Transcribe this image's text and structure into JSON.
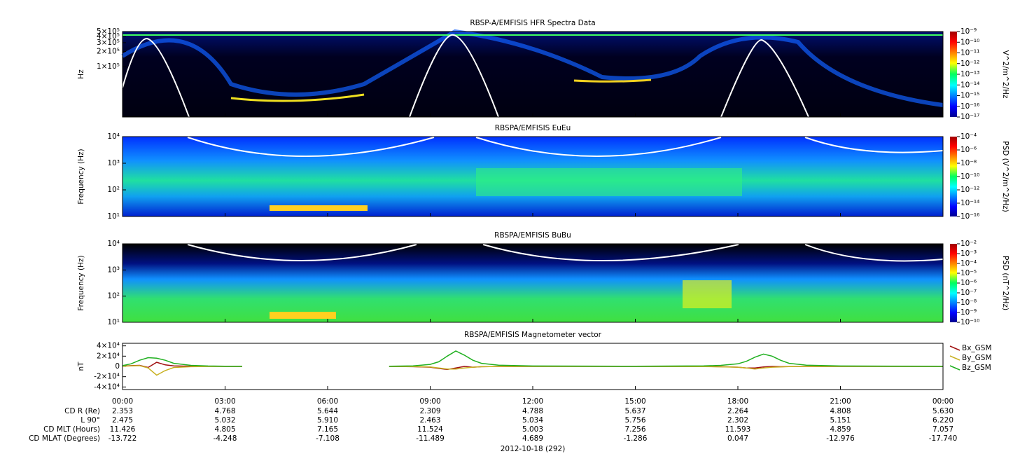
{
  "chart_data": [
    {
      "type": "spectrogram",
      "title": "RBSP-A/EMFISIS  HFR Spectra Data",
      "ylabel": "Hz",
      "log": true,
      "ylim": [
        10000,
        500000
      ],
      "yticks": [
        {
          "value": 500000,
          "label": "5×10⁵"
        },
        {
          "value": 400000,
          "label": "4×10⁵"
        },
        {
          "value": 300000,
          "label": "3×10⁵"
        },
        {
          "value": 200000,
          "label": "2×10⁵"
        },
        {
          "value": 100000,
          "label": "1×10⁵"
        }
      ],
      "colorbar": {
        "label": "V^2/m^2/Hz",
        "clim": [
          1e-17,
          1e-09
        ],
        "ticks": [
          {
            "value": 1e-09,
            "label": "10⁻⁹"
          },
          {
            "value": 1e-10,
            "label": "10⁻¹⁰"
          },
          {
            "value": 1e-11,
            "label": "10⁻¹¹"
          },
          {
            "value": 1e-12,
            "label": "10⁻¹²"
          },
          {
            "value": 1e-13,
            "label": "10⁻¹³"
          },
          {
            "value": 1e-14,
            "label": "10⁻¹⁴"
          },
          {
            "value": 1e-15,
            "label": "10⁻¹⁵"
          },
          {
            "value": 1e-16,
            "label": "10⁻¹⁶"
          },
          {
            "value": 1e-17,
            "label": "10⁻¹⁷"
          }
        ]
      }
    },
    {
      "type": "spectrogram",
      "title": "RBSPA/EMFISIS  EuEu",
      "ylabel": "Frequency (Hz)",
      "log": true,
      "ylim": [
        10,
        10000
      ],
      "yticks": [
        {
          "value": 10000,
          "label": "10⁴"
        },
        {
          "value": 1000,
          "label": "10³"
        },
        {
          "value": 100,
          "label": "10²"
        },
        {
          "value": 10,
          "label": "10¹"
        }
      ],
      "colorbar": {
        "label": "PSD (V^2/m^2/Hz)",
        "clim": [
          1e-16,
          0.0001
        ],
        "ticks": [
          {
            "value": 0.0001,
            "label": "10⁻⁴"
          },
          {
            "value": 1e-06,
            "label": "10⁻⁶"
          },
          {
            "value": 1e-08,
            "label": "10⁻⁸"
          },
          {
            "value": 1e-10,
            "label": "10⁻¹⁰"
          },
          {
            "value": 1e-12,
            "label": "10⁻¹²"
          },
          {
            "value": 1e-14,
            "label": "10⁻¹⁴"
          },
          {
            "value": 1e-16,
            "label": "10⁻¹⁶"
          }
        ]
      }
    },
    {
      "type": "spectrogram",
      "title": "RBSPA/EMFISIS  BuBu",
      "ylabel": "Frequency (Hz)",
      "log": true,
      "ylim": [
        10,
        10000
      ],
      "yticks": [
        {
          "value": 10000,
          "label": "10⁴"
        },
        {
          "value": 1000,
          "label": "10³"
        },
        {
          "value": 100,
          "label": "10²"
        },
        {
          "value": 10,
          "label": "10¹"
        }
      ],
      "colorbar": {
        "label": "PSD (nT^2/Hz)",
        "clim": [
          1e-10,
          0.01
        ],
        "ticks": [
          {
            "value": 0.01,
            "label": "10⁻²"
          },
          {
            "value": 0.001,
            "label": "10⁻³"
          },
          {
            "value": 0.0001,
            "label": "10⁻⁴"
          },
          {
            "value": 1e-05,
            "label": "10⁻⁵"
          },
          {
            "value": 1e-06,
            "label": "10⁻⁶"
          },
          {
            "value": 1e-07,
            "label": "10⁻⁷"
          },
          {
            "value": 1e-08,
            "label": "10⁻⁸"
          },
          {
            "value": 1e-09,
            "label": "10⁻⁹"
          },
          {
            "value": 1e-10,
            "label": "10⁻¹⁰"
          }
        ]
      }
    },
    {
      "type": "line",
      "title": "RBSPA/EMFISIS  Magnetometer vector",
      "ylabel": "nT",
      "ylim": [
        -45000,
        45000
      ],
      "yticks": [
        {
          "value": 40000,
          "label": "4×10⁴"
        },
        {
          "value": 20000,
          "label": "2×10⁴"
        },
        0,
        {
          "value": -20000,
          "label": "-2×10⁴"
        },
        {
          "value": -40000,
          "label": "-4×10⁴"
        }
      ],
      "xlim": [
        0,
        24
      ],
      "xticks": [
        {
          "value": 0,
          "label": "00:00"
        },
        {
          "value": 3,
          "label": "03:00"
        },
        {
          "value": 6,
          "label": "06:00"
        },
        {
          "value": 9,
          "label": "09:00"
        },
        {
          "value": 12,
          "label": "12:00"
        },
        {
          "value": 15,
          "label": "15:00"
        },
        {
          "value": 18,
          "label": "18:00"
        },
        {
          "value": 21,
          "label": "21:00"
        },
        {
          "value": 24,
          "label": "00:00"
        }
      ],
      "x": [
        0,
        0.25,
        0.5,
        0.75,
        1.0,
        1.25,
        1.5,
        2,
        2.5,
        3,
        3.5,
        3.6,
        7.8,
        8.5,
        9,
        9.25,
        9.5,
        9.75,
        10,
        10.25,
        10.5,
        11,
        12,
        15,
        17,
        17.5,
        18,
        18.25,
        18.5,
        18.75,
        19,
        19.25,
        19.5,
        20,
        21,
        24
      ],
      "series": [
        {
          "name": "Bx_GSM",
          "color": "#a01010",
          "values": [
            500,
            1500,
            2000,
            -2000,
            8000,
            3000,
            1000,
            300,
            100,
            0,
            0,
            null,
            0,
            -500,
            -1500,
            -4000,
            -6000,
            -3000,
            0,
            -1500,
            -500,
            -200,
            0,
            0,
            -200,
            -500,
            -1500,
            -3000,
            -3000,
            -1000,
            0,
            -500,
            -200,
            -100,
            0,
            0
          ]
        },
        {
          "name": "By_GSM",
          "color": "#c8b020",
          "values": [
            300,
            1000,
            1500,
            -3000,
            -17000,
            -8000,
            -2000,
            -500,
            -200,
            0,
            0,
            null,
            0,
            -300,
            -1000,
            -3000,
            -5000,
            -5000,
            -3000,
            -1500,
            -500,
            -200,
            0,
            0,
            -300,
            -800,
            -1500,
            -3000,
            -5000,
            -3000,
            -1500,
            -1000,
            -300,
            -100,
            0,
            0
          ]
        },
        {
          "name": "Bz_GSM",
          "color": "#20b020",
          "values": [
            1500,
            5000,
            12000,
            17000,
            16000,
            12000,
            6000,
            2000,
            800,
            400,
            300,
            null,
            300,
            1000,
            4000,
            9000,
            20000,
            30000,
            22000,
            12000,
            6000,
            2500,
            800,
            300,
            1000,
            2000,
            5000,
            10000,
            18000,
            24000,
            20000,
            12000,
            6000,
            2500,
            800,
            300
          ]
        }
      ]
    }
  ],
  "ephemeris": {
    "rows": [
      {
        "label": "CD R (Re)",
        "values": [
          "2.353",
          "4.768",
          "5.644",
          "2.309",
          "4.788",
          "5.637",
          "2.264",
          "4.808",
          "5.630"
        ]
      },
      {
        "label": "L 90°",
        "values": [
          "2.475",
          "5.032",
          "5.910",
          "2.463",
          "5.034",
          "5.756",
          "2.302",
          "5.151",
          "6.220"
        ]
      },
      {
        "label": "CD MLT (Hours)",
        "values": [
          "11.426",
          "4.805",
          "7.165",
          "11.524",
          "5.003",
          "7.256",
          "11.593",
          "4.859",
          "7.057"
        ]
      },
      {
        "label": "CD MLAT (Degrees)",
        "values": [
          "-13.722",
          "-4.248",
          "-7.108",
          "-11.489",
          "4.689",
          "-1.286",
          "0.047",
          "-12.976",
          "-17.740"
        ]
      }
    ],
    "date": "2012-10-18 (292)"
  }
}
